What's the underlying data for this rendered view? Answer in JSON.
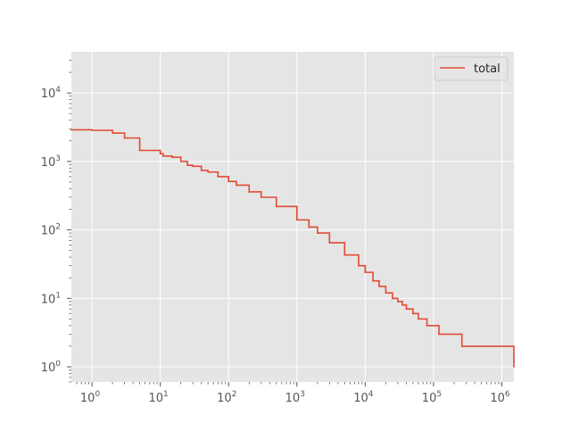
{
  "chart_data": {
    "type": "line",
    "style": "ggplot",
    "title": "",
    "xlabel": "",
    "ylabel": "",
    "x_scale": "log",
    "y_scale": "log",
    "xlim": [
      0.5,
      1500000
    ],
    "ylim": [
      0.6,
      40000
    ],
    "grid": true,
    "background_color": "#E5E5E5",
    "grid_color": "#FFFFFF",
    "x_ticks": [
      {
        "base": "10",
        "exp": "0",
        "value": 1
      },
      {
        "base": "10",
        "exp": "1",
        "value": 10
      },
      {
        "base": "10",
        "exp": "2",
        "value": 100
      },
      {
        "base": "10",
        "exp": "3",
        "value": 1000
      },
      {
        "base": "10",
        "exp": "4",
        "value": 10000
      },
      {
        "base": "10",
        "exp": "5",
        "value": 100000
      },
      {
        "base": "10",
        "exp": "6",
        "value": 1000000
      }
    ],
    "y_ticks": [
      {
        "base": "10",
        "exp": "0",
        "value": 1
      },
      {
        "base": "10",
        "exp": "1",
        "value": 10
      },
      {
        "base": "10",
        "exp": "2",
        "value": 100
      },
      {
        "base": "10",
        "exp": "3",
        "value": 1000
      },
      {
        "base": "10",
        "exp": "4",
        "value": 10000
      }
    ],
    "legend": {
      "position": "upper right",
      "entries": [
        {
          "label": "total",
          "color": "#E24A33"
        }
      ]
    },
    "series": [
      {
        "name": "total",
        "color": "#E24A33",
        "drawstyle": "steps-post",
        "x": [
          0.5,
          1,
          2,
          3,
          5,
          10,
          11,
          15,
          20,
          25,
          30,
          40,
          50,
          70,
          100,
          130,
          200,
          300,
          500,
          1000,
          1500,
          2000,
          3000,
          5000,
          8000,
          10000,
          13000,
          16000,
          20000,
          25000,
          30000,
          35000,
          40000,
          50000,
          60000,
          80000,
          120000,
          260000,
          1500000
        ],
        "y": [
          2900,
          2850,
          2600,
          2200,
          1450,
          1300,
          1200,
          1150,
          1000,
          880,
          850,
          740,
          700,
          600,
          510,
          450,
          360,
          300,
          220,
          140,
          110,
          90,
          65,
          43,
          30,
          24,
          18,
          15,
          12,
          10,
          9,
          8,
          7,
          6,
          5,
          4,
          3,
          2,
          1
        ]
      }
    ]
  }
}
